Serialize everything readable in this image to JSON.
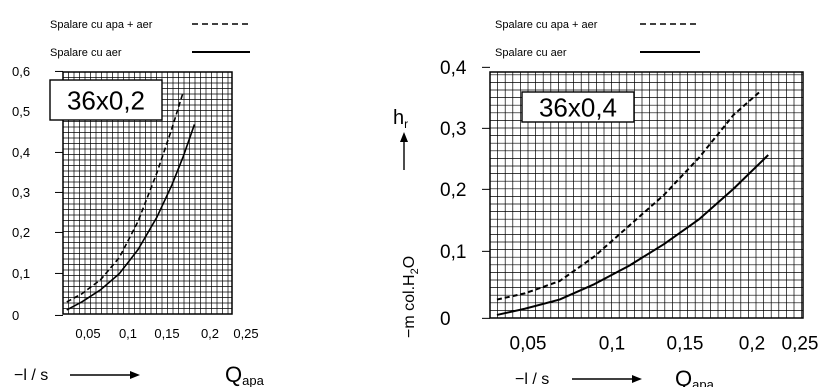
{
  "chart_data": [
    {
      "type": "line",
      "legend": [
        {
          "label": "Spalare cu apa + aer",
          "style": "dashed"
        },
        {
          "label": "Spalare cu aer",
          "style": "solid"
        }
      ],
      "legend_placement": "top",
      "box_label": "36x0,2",
      "x_ticks": [
        "0,05",
        "0,1",
        "0,15",
        "0,2",
        "0,25"
      ],
      "y_ticks": [
        "0",
        "0,1",
        "0,2",
        "0,3",
        "0,4",
        "0,5",
        "0,6"
      ],
      "x_unit": "−l / s",
      "x_quantity": "Q",
      "x_quantity_sub": "apa",
      "xlim": [
        0.025,
        0.25
      ],
      "ylim": [
        0,
        0.6
      ],
      "grid": true,
      "series": [
        {
          "name": "Spalare cu apa + aer",
          "style": "dashed",
          "x": [
            0.03,
            0.05,
            0.075,
            0.1,
            0.125,
            0.15,
            0.17,
            0.185
          ],
          "y": [
            0.03,
            0.05,
            0.085,
            0.14,
            0.23,
            0.35,
            0.46,
            0.55
          ]
        },
        {
          "name": "Spalare cu aer",
          "style": "solid",
          "x": [
            0.03,
            0.05,
            0.075,
            0.1,
            0.125,
            0.15,
            0.17,
            0.185,
            0.2
          ],
          "y": [
            0.01,
            0.03,
            0.06,
            0.1,
            0.16,
            0.24,
            0.32,
            0.39,
            0.47
          ]
        }
      ]
    },
    {
      "type": "line",
      "legend": [
        {
          "label": "Spalare cu apa + aer",
          "style": "dashed"
        },
        {
          "label": "Spalare cu aer",
          "style": "solid"
        }
      ],
      "legend_placement": "top",
      "box_label": "36x0,4",
      "x_ticks": [
        "0,05",
        "0,1",
        "0,15",
        "0,2",
        "0,25"
      ],
      "y_ticks": [
        "0",
        "0,1",
        "0,2",
        "0,3",
        "0,4"
      ],
      "x_unit": "−l / s",
      "x_quantity": "Q",
      "x_quantity_sub": "apa",
      "y_quantity": "h",
      "y_quantity_sub": "r",
      "y_unit_main": "−m col.H",
      "y_unit_sub": "2",
      "y_unit_end": "O",
      "xlim": [
        0.025,
        0.25
      ],
      "ylim": [
        0,
        0.4
      ],
      "grid": true,
      "series": [
        {
          "name": "Spalare cu apa + aer",
          "style": "dashed",
          "x": [
            0.03,
            0.05,
            0.075,
            0.1,
            0.125,
            0.15,
            0.175,
            0.2,
            0.22
          ],
          "y": [
            0.03,
            0.04,
            0.06,
            0.1,
            0.15,
            0.2,
            0.26,
            0.33,
            0.37
          ]
        },
        {
          "name": "Spalare cu aer",
          "style": "solid",
          "x": [
            0.03,
            0.05,
            0.075,
            0.1,
            0.125,
            0.15,
            0.175,
            0.2,
            0.225
          ],
          "y": [
            0.005,
            0.015,
            0.03,
            0.055,
            0.085,
            0.12,
            0.16,
            0.21,
            0.265
          ]
        }
      ]
    }
  ]
}
